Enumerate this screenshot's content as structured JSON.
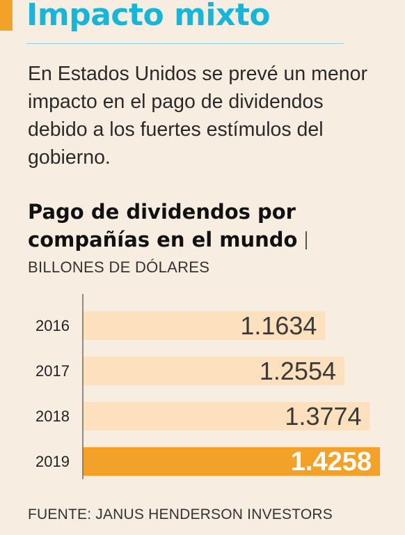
{
  "headline": "Impacto mixto",
  "intro": "En Estados Unidos se prevé un menor impacto en el pago de dividendos debido a los fuertes estímulos del gobierno.",
  "source": "FUENTE: JANUS HENDERSON INVESTORS",
  "colors": {
    "headline": "#17b6d8",
    "accent": "#f2a229",
    "bar": "#fde0bd",
    "highlight": "#f2a229",
    "background": "#f8ede1"
  },
  "chart_data": {
    "type": "bar",
    "orientation": "horizontal",
    "title": "Pago de dividendos por compañías en el mundo",
    "unit": "BILLONES DE DÓLARES",
    "categories": [
      "2016",
      "2017",
      "2018",
      "2019"
    ],
    "values": [
      1.1634,
      1.2554,
      1.3774,
      1.4258
    ],
    "value_labels": [
      "1.1634",
      "1.2554",
      "1.3774",
      "1.4258"
    ],
    "highlight_category": "2019",
    "grid": false,
    "legend": "none"
  }
}
